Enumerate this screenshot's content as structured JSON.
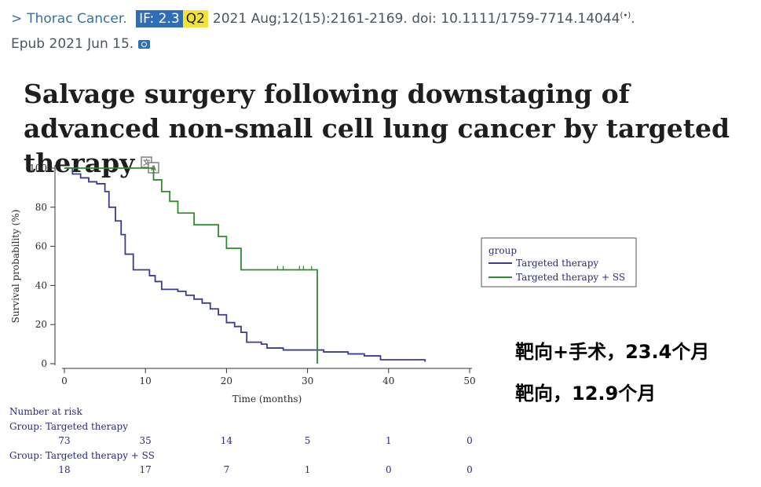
{
  "citation": {
    "journal": "Thorac Cancer.",
    "impact_factor": "IF: 2.3",
    "quartile": "Q2",
    "reference": "2021 Aug;12(15):2161-2169. doi: 10.1111/1759-7714.14044",
    "epub": "Epub 2021 Jun 15."
  },
  "article": {
    "title": "Salvage surgery following downstaging of advanced non-small cell lung cancer by targeted therapy"
  },
  "colors": {
    "targeted": "#3b3b8f",
    "targeted_ss": "#2e8b2e",
    "link": "#3a6fa6",
    "if_badge": "#2f6db5",
    "q_badge": "#f3e23a"
  },
  "chart_data": {
    "type": "line",
    "title": "",
    "xlabel": "Time (months)",
    "ylabel": "Survival probability (%)",
    "xlim": [
      0,
      50
    ],
    "ylim": [
      0,
      100
    ],
    "xticks": [
      0,
      10,
      20,
      30,
      40,
      50
    ],
    "yticks": [
      0,
      20,
      40,
      60,
      80,
      100
    ],
    "grid": false,
    "legend": {
      "title": "group",
      "position": "right"
    },
    "series": [
      {
        "name": "Targeted therapy",
        "color": "#3b3b8f",
        "steps": [
          [
            0,
            100
          ],
          [
            1,
            97
          ],
          [
            2,
            95
          ],
          [
            3,
            93
          ],
          [
            4,
            92
          ],
          [
            5,
            88
          ],
          [
            5.5,
            80
          ],
          [
            6.3,
            73
          ],
          [
            7,
            66
          ],
          [
            7.5,
            56
          ],
          [
            8.5,
            48
          ],
          [
            10.5,
            45
          ],
          [
            11.2,
            42
          ],
          [
            12,
            38
          ],
          [
            14,
            37
          ],
          [
            15,
            35
          ],
          [
            16,
            33
          ],
          [
            17,
            31
          ],
          [
            18,
            28
          ],
          [
            19,
            25
          ],
          [
            20,
            21
          ],
          [
            21,
            19
          ],
          [
            21.8,
            16
          ],
          [
            22.5,
            11
          ],
          [
            24.3,
            10
          ],
          [
            25,
            8
          ],
          [
            27,
            7
          ],
          [
            32,
            6
          ],
          [
            35,
            5
          ],
          [
            37,
            4
          ],
          [
            39,
            2
          ],
          [
            44.5,
            1
          ]
        ],
        "censored": []
      },
      {
        "name": "Targeted therapy + SS",
        "color": "#2e8b2e",
        "steps": [
          [
            0,
            100
          ],
          [
            11,
            94
          ],
          [
            12,
            88
          ],
          [
            13,
            83
          ],
          [
            14,
            77
          ],
          [
            16,
            71
          ],
          [
            19,
            65
          ],
          [
            20,
            59
          ],
          [
            21.8,
            48
          ],
          [
            31.2,
            0
          ]
        ],
        "censored": [
          [
            26.3,
            48
          ],
          [
            27,
            48
          ],
          [
            29,
            48
          ],
          [
            29.5,
            48
          ],
          [
            30.5,
            48
          ]
        ]
      }
    ],
    "risk_table": {
      "title": "Number at risk",
      "times": [
        0,
        10,
        20,
        30,
        40,
        50
      ],
      "groups": [
        {
          "label": "Group: Targeted therapy",
          "counts": [
            "73",
            "35",
            "14",
            "5",
            "1",
            "0"
          ]
        },
        {
          "label": "Group: Targeted therapy + SS",
          "counts": [
            "18",
            "17",
            "7",
            "1",
            "0",
            "0"
          ]
        }
      ]
    }
  },
  "annotations": {
    "line1": "靶向+手术，23.4个月",
    "line2": "靶向，12.9个月"
  }
}
